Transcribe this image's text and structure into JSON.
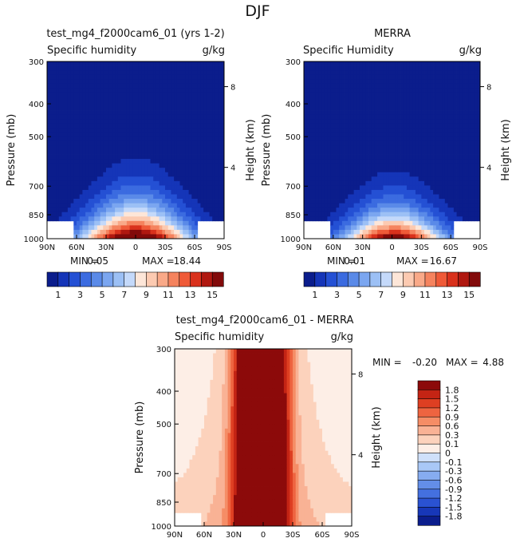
{
  "page": {
    "suptitle": "DJF"
  },
  "colors": {
    "field_levels": [
      "#0b1d8c",
      "#1535b8",
      "#2450d4",
      "#3b6be0",
      "#5a8ae8",
      "#7ba6f0",
      "#9cc0f5",
      "#c4d9fa",
      "#fde6d8",
      "#fccab1",
      "#f9a988",
      "#f5835e",
      "#ef5a38",
      "#d9311c",
      "#b01810",
      "#820a0a"
    ],
    "diff_levels": [
      "#0b1d8c",
      "#1737b8",
      "#2a52d2",
      "#4470e0",
      "#638ee8",
      "#86acf0",
      "#a9c8f6",
      "#cfe0fa",
      "#fdeee6",
      "#fcd2bc",
      "#f9b295",
      "#f58d66",
      "#ee6440",
      "#de3f22",
      "#c42414",
      "#8c0a0a"
    ]
  },
  "chart_data": [
    {
      "type": "heatmap",
      "title": "test_mg4_f2000cam6_01 (yrs 1-2)",
      "variable_label": "Specific humidity",
      "units": "g/kg",
      "ylabel": "Pressure (mb)",
      "ylabel_right": "Height (km)",
      "x_ticks": [
        "90N",
        "60N",
        "30N",
        "0",
        "30S",
        "60S",
        "90S"
      ],
      "y_ticks": [
        "300",
        "400",
        "500",
        "700",
        "850",
        "1000"
      ],
      "y_ticks_right": [
        "8",
        "4"
      ],
      "stats": {
        "min_label": "MIN =",
        "min": "0.05",
        "max_label": "MAX =",
        "max": "18.44"
      },
      "colorbar_labels": [
        "1",
        "3",
        "5",
        "7",
        "9",
        "11",
        "13",
        "15"
      ],
      "peak_value": 18.44,
      "peak_lat": 0,
      "width_deg": 26,
      "height_exponent": 3.2
    },
    {
      "type": "heatmap",
      "title": "MERRA",
      "variable_label": "Specific Humidity",
      "units": "g/kg",
      "ylabel": "Pressure (mb)",
      "ylabel_right": "Height (km)",
      "x_ticks": [
        "90N",
        "60N",
        "30N",
        "0",
        "30S",
        "60S",
        "90S"
      ],
      "y_ticks": [
        "300",
        "400",
        "500",
        "700",
        "850",
        "1000"
      ],
      "y_ticks_right": [
        "8",
        "4"
      ],
      "stats": {
        "min_label": "MIN =",
        "min": "0.01",
        "max_label": "MAX =",
        "max": "16.67"
      },
      "colorbar_labels": [
        "1",
        "3",
        "5",
        "7",
        "9",
        "11",
        "13",
        "15"
      ],
      "peak_value": 16.67,
      "peak_lat": -2,
      "width_deg": 22,
      "height_exponent": 3.8
    },
    {
      "type": "heatmap",
      "title": "test_mg4_f2000cam6_01 - MERRA",
      "variable_label": "Specific humidity",
      "units": "g/kg",
      "ylabel": "Pressure (mb)",
      "ylabel_right": "Height (km)",
      "x_ticks": [
        "90N",
        "60N",
        "30N",
        "0",
        "30S",
        "60S",
        "90S"
      ],
      "y_ticks": [
        "300",
        "400",
        "500",
        "700",
        "850",
        "1000"
      ],
      "y_ticks_right": [
        "8",
        "4"
      ],
      "stats": {
        "min_label": "MIN =",
        "min": "-0.20",
        "max_label": "MAX =",
        "max": "4.88"
      },
      "colorbar_labels": [
        "1.8",
        "1.5",
        "1.2",
        "0.9",
        "0.6",
        "0.3",
        "0.1",
        "0",
        "-0.1",
        "-0.3",
        "-0.6",
        "-0.9",
        "-1.2",
        "-1.5",
        "-1.8"
      ],
      "peak_value": 4.88,
      "peak_lat": 2,
      "width_deg": 30,
      "height_exponent": 0.9
    }
  ]
}
